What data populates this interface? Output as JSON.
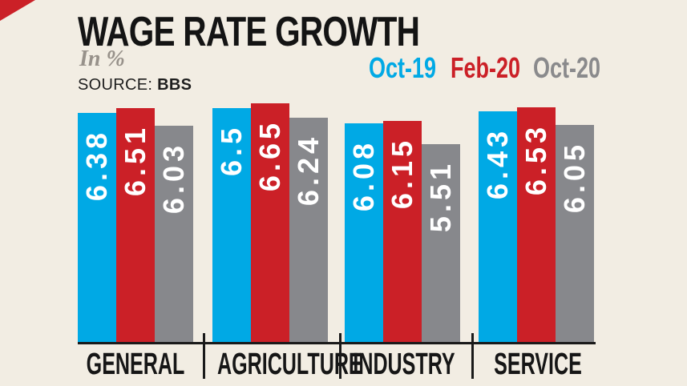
{
  "header": {
    "title": "WAGE RATE GROWTH",
    "subtitle": "In %",
    "source_label": "SOURCE:",
    "source_value": "BBS"
  },
  "legend": [
    {
      "label": "Oct-19",
      "color": "#00A9E5"
    },
    {
      "label": "Feb-20",
      "color": "#CB2027"
    },
    {
      "label": "Oct-20",
      "color": "#8A8A8C"
    }
  ],
  "chart_data": {
    "type": "bar",
    "title": "WAGE RATE GROWTH",
    "unit": "%",
    "source": "BBS",
    "categories": [
      "GENERAL",
      "AGRICULTURE",
      "INDUSTRY",
      "SERVICE"
    ],
    "series": [
      {
        "name": "Oct-19",
        "color": "#00A9E5",
        "values": [
          6.38,
          6.5,
          6.08,
          6.43
        ]
      },
      {
        "name": "Feb-20",
        "color": "#CB2027",
        "values": [
          6.51,
          6.65,
          6.15,
          6.53
        ]
      },
      {
        "name": "Oct-20",
        "color": "#87888C",
        "values": [
          6.03,
          6.24,
          5.51,
          6.05
        ]
      }
    ],
    "ylim": [
      0,
      6.65
    ],
    "grid": false,
    "value_labels": true,
    "legend_position": "top-right"
  },
  "colors": {
    "background": "#F2EDE3",
    "text": "#141414",
    "accent_red": "#CB2027",
    "axis": "#1A1A1A"
  }
}
